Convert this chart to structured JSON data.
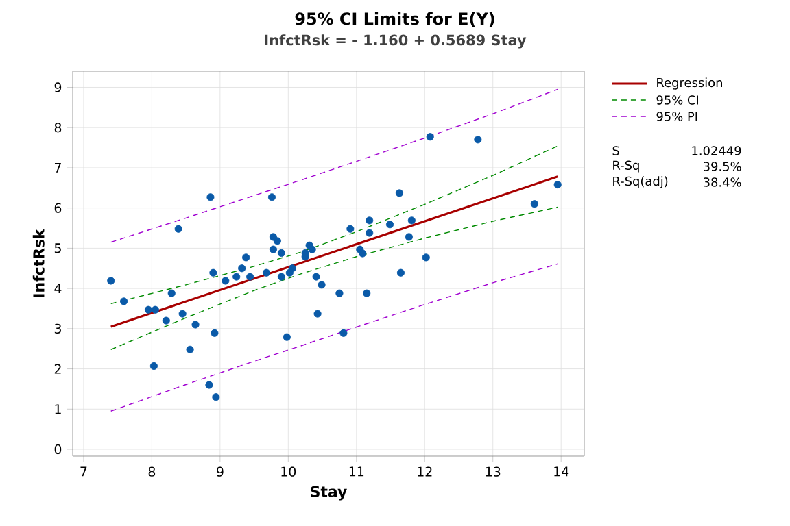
{
  "chart_data": {
    "type": "scatter",
    "title": "95% CI Limits for E(Y)",
    "subtitle": "InfctRsk = - 1.160 + 0.5689 Stay",
    "xlabel": "Stay",
    "ylabel": "InfctRsk",
    "xlim": [
      6.84,
      14.34
    ],
    "ylim": [
      -0.17,
      9.4
    ],
    "xticks": [
      7,
      8,
      9,
      10,
      11,
      12,
      13,
      14
    ],
    "yticks": [
      0,
      1,
      2,
      3,
      4,
      5,
      6,
      7,
      8,
      9
    ],
    "grid": true,
    "legend": "top right",
    "annotations": [
      "S",
      "1.02449",
      "R-Sq",
      "39.5%",
      "R-Sq(adj)",
      "38.4%"
    ],
    "series": [
      {
        "color": "#0a5aa8",
        "marker": "circle",
        "x": [
          7.4,
          7.59,
          7.95,
          8.05,
          8.03,
          8.21,
          8.29,
          8.39,
          8.45,
          8.56,
          8.64,
          8.84,
          8.86,
          8.9,
          8.92,
          8.94,
          9.08,
          9.24,
          9.32,
          9.38,
          9.44,
          9.68,
          9.76,
          9.78,
          9.84,
          9.78,
          9.9,
          9.9,
          9.98,
          10.02,
          10.06,
          10.25,
          10.25,
          10.31,
          10.35,
          10.41,
          10.49,
          10.43,
          10.75,
          10.81,
          10.91,
          11.05,
          11.09,
          11.15,
          11.19,
          11.19,
          11.49,
          11.63,
          11.65,
          11.77,
          11.81,
          12.02,
          12.08,
          12.78,
          13.61,
          13.95
        ],
        "values": [
          4.19,
          3.68,
          3.47,
          3.47,
          2.07,
          3.2,
          3.88,
          5.48,
          3.37,
          2.48,
          3.1,
          1.6,
          6.27,
          4.39,
          2.89,
          1.3,
          4.19,
          4.29,
          4.5,
          4.77,
          4.29,
          4.39,
          6.27,
          5.28,
          5.18,
          4.97,
          4.88,
          4.29,
          2.79,
          4.39,
          4.5,
          4.88,
          4.79,
          5.07,
          4.97,
          4.29,
          4.09,
          3.37,
          3.88,
          2.89,
          5.48,
          4.97,
          4.87,
          3.88,
          5.69,
          5.38,
          5.59,
          6.37,
          4.39,
          5.28,
          5.69,
          4.77,
          7.77,
          7.7,
          6.1,
          6.58
        ]
      },
      {
        "type": "line",
        "name": "Regression",
        "color": "#a80000",
        "line_style": "solid",
        "marker": "none",
        "x": [
          7.4,
          13.95
        ],
        "values": [
          3.05,
          6.78
        ]
      },
      {
        "type": "line",
        "name": "95% CI",
        "color": "#008a00",
        "line_style": "dashed",
        "marker": "none",
        "x": [
          7.4,
          8.5,
          9.5,
          10.2,
          11,
          12,
          13,
          13.95
        ],
        "values": [
          3.62,
          4.09,
          4.55,
          4.91,
          5.41,
          6.09,
          6.81,
          7.54
        ]
      },
      {
        "type": "line",
        "color": "#008a00",
        "line_style": "dashed",
        "marker": "none",
        "x": [
          7.4,
          8.5,
          9.5,
          10.2,
          11,
          12,
          13,
          13.95
        ],
        "values": [
          2.48,
          3.27,
          3.95,
          4.37,
          4.79,
          5.25,
          5.67,
          6.02
        ]
      },
      {
        "type": "line",
        "name": "95% PI",
        "color": "#a000d0",
        "line_style": "dashed",
        "marker": "none",
        "x": [
          7.4,
          8.5,
          9.5,
          10.2,
          11,
          12,
          13,
          13.95
        ],
        "values": [
          5.15,
          5.75,
          6.31,
          6.7,
          7.16,
          7.74,
          8.34,
          8.95
        ]
      },
      {
        "type": "line",
        "color": "#a000d0",
        "line_style": "dashed",
        "marker": "none",
        "x": [
          7.4,
          8.5,
          9.5,
          10.2,
          11,
          12,
          13,
          13.95
        ],
        "values": [
          0.95,
          1.61,
          2.19,
          2.58,
          3.04,
          3.6,
          4.14,
          4.61
        ]
      }
    ]
  }
}
